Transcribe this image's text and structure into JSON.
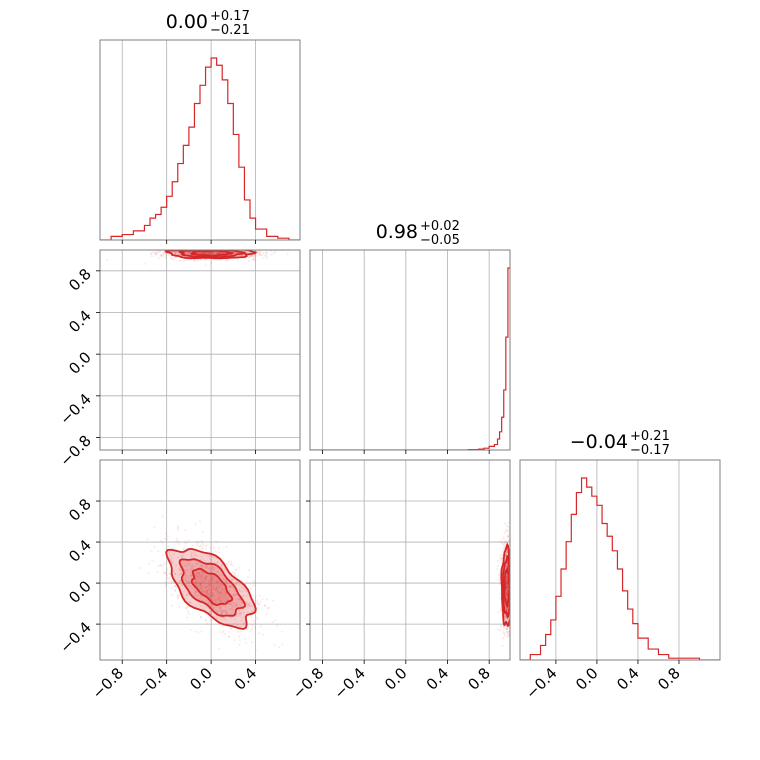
{
  "chart_data": {
    "type": "corner",
    "color": "#d62728",
    "grid": true,
    "parameters": [
      {
        "id": "p0",
        "range": [
          -1.0,
          0.8
        ],
        "ticks": [
          -0.8,
          -0.4,
          0.0,
          0.4
        ],
        "tick_labels": [
          "−0.8",
          "−0.4",
          "0.0",
          "0.4"
        ]
      },
      {
        "id": "p1",
        "range": [
          -0.92,
          1.0
        ],
        "ticks": [
          -0.8,
          -0.4,
          0.0,
          0.4,
          0.8
        ],
        "tick_labels": [
          "−0.8",
          "−0.4",
          "0.0",
          "0.4",
          "0.8"
        ]
      },
      {
        "id": "p2",
        "range": [
          -0.75,
          1.2
        ],
        "ticks": [
          -0.4,
          0.0,
          0.4,
          0.8
        ],
        "tick_labels": [
          "−0.4",
          "0.0",
          "0.4",
          "0.8"
        ]
      }
    ],
    "titles": [
      {
        "median": "0.00",
        "plus": "+0.17",
        "minus": "−0.21"
      },
      {
        "median": "0.98",
        "plus": "+0.02",
        "minus": "−0.05"
      },
      {
        "median": "−0.04",
        "plus": "+0.21",
        "minus": "−0.17"
      }
    ],
    "histograms": [
      {
        "param": 0,
        "x": [
          -1.0,
          -0.9,
          -0.8,
          -0.7,
          -0.6,
          -0.55,
          -0.5,
          -0.45,
          -0.4,
          -0.35,
          -0.3,
          -0.25,
          -0.2,
          -0.15,
          -0.1,
          -0.05,
          0.0,
          0.05,
          0.1,
          0.15,
          0.2,
          0.25,
          0.3,
          0.35,
          0.4,
          0.5,
          0.6,
          0.7,
          0.8
        ],
        "y": [
          0.0,
          0.02,
          0.03,
          0.05,
          0.08,
          0.12,
          0.14,
          0.18,
          0.24,
          0.32,
          0.42,
          0.52,
          0.62,
          0.75,
          0.85,
          0.95,
          1.0,
          0.96,
          0.88,
          0.75,
          0.58,
          0.4,
          0.22,
          0.12,
          0.06,
          0.02,
          0.01,
          0.0,
          0.0
        ]
      },
      {
        "param": 1,
        "x": [
          -0.92,
          0.0,
          0.5,
          0.6,
          0.7,
          0.75,
          0.8,
          0.85,
          0.88,
          0.9,
          0.92,
          0.94,
          0.96,
          0.98,
          1.0
        ],
        "y": [
          0.0,
          0.0,
          0.0,
          0.002,
          0.005,
          0.01,
          0.02,
          0.03,
          0.06,
          0.1,
          0.18,
          0.33,
          0.62,
          1.0,
          1.0
        ]
      },
      {
        "param": 2,
        "x": [
          -0.75,
          -0.65,
          -0.55,
          -0.5,
          -0.45,
          -0.4,
          -0.35,
          -0.3,
          -0.25,
          -0.2,
          -0.15,
          -0.1,
          -0.05,
          0.0,
          0.05,
          0.1,
          0.15,
          0.2,
          0.25,
          0.3,
          0.35,
          0.4,
          0.5,
          0.6,
          0.7,
          0.8,
          0.9,
          1.0,
          1.2
        ],
        "y": [
          0.0,
          0.03,
          0.08,
          0.14,
          0.22,
          0.35,
          0.5,
          0.65,
          0.8,
          0.92,
          1.0,
          0.95,
          0.9,
          0.85,
          0.75,
          0.68,
          0.6,
          0.5,
          0.38,
          0.28,
          0.2,
          0.12,
          0.06,
          0.03,
          0.01,
          0.01,
          0.01,
          0.0,
          0.0
        ]
      }
    ],
    "pairs": [
      {
        "x_param": 0,
        "y_param": 1,
        "center": [
          0.0,
          0.97
        ],
        "sigma": [
          0.19,
          0.025
        ],
        "rho": 0.0
      },
      {
        "x_param": 0,
        "y_param": 2,
        "center": [
          0.0,
          -0.04
        ],
        "sigma": [
          0.19,
          0.19
        ],
        "rho": -0.6
      },
      {
        "x_param": 1,
        "y_param": 2,
        "center": [
          0.97,
          -0.04
        ],
        "sigma": [
          0.025,
          0.19
        ],
        "rho": 0.0
      }
    ]
  }
}
